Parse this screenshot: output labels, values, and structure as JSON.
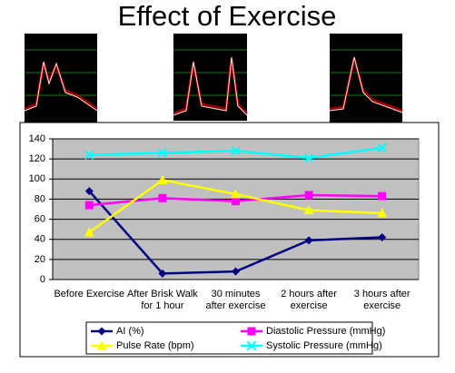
{
  "chart_data": {
    "type": "line",
    "title": "Effect of Exercise",
    "categories": [
      "Before Exercise",
      "After Brisk Walk for 1 hour",
      "30 minutes after exercise",
      "2 hours after exercise",
      "3 hours after exercise"
    ],
    "series": [
      {
        "name": "AI (%)",
        "color": "#000080",
        "marker": "diamond",
        "values": [
          88,
          6,
          8,
          39,
          42
        ]
      },
      {
        "name": "Diastolic Pressure (mmHg)",
        "color": "#ff00ff",
        "marker": "square",
        "values": [
          74,
          81,
          78,
          84,
          83
        ]
      },
      {
        "name": "Pulse Rate (bpm)",
        "color": "#ffff00",
        "marker": "triangle",
        "values": [
          47,
          99,
          85,
          69,
          66
        ]
      },
      {
        "name": "Systolic Pressure (mmHg)",
        "color": "#00ffff",
        "marker": "x",
        "values": [
          124,
          126,
          128,
          121,
          131
        ]
      }
    ],
    "ylim": [
      0,
      140
    ],
    "yticks": [
      0,
      20,
      40,
      60,
      80,
      100,
      120,
      140
    ],
    "grid": true,
    "legend": "bottom"
  }
}
